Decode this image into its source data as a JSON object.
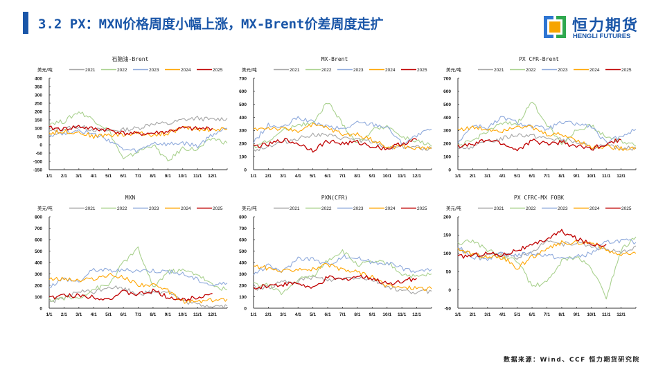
{
  "header": {
    "title": "3.2 PX：MXN价格周度小幅上涨，MX-Brent价差周度走扩"
  },
  "logo": {
    "name_cn": "恒力期货",
    "name_en": "HENGLI FUTURES"
  },
  "footer": {
    "source": "数据来源：Wind、CCF 恒力期货研究院"
  },
  "colors": {
    "2021": "#a6a6a6",
    "2022": "#a9d18e",
    "2023": "#8faadc",
    "2024": "#ffa500",
    "2025": "#c00000",
    "brand": "#1a56a8"
  },
  "chart_data": [
    {
      "type": "line",
      "title": "石脑油-Brent",
      "unit": "美元/吨",
      "xlabel": "",
      "ylabel": "美元/吨",
      "ylim": [
        -150,
        400
      ],
      "yticks": [
        400,
        350,
        300,
        250,
        200,
        150,
        100,
        50,
        0,
        -50,
        -100,
        -150
      ],
      "xticks": [
        "1/1",
        "2/1",
        "3/1",
        "4/1",
        "5/1",
        "6/1",
        "7/1",
        "8/1",
        "9/1",
        "10/1",
        "11/1",
        "12/1"
      ],
      "series": [
        {
          "name": "2021",
          "values": [
            80,
            95,
            110,
            90,
            85,
            90,
            100,
            130,
            125,
            150,
            160,
            150,
            160
          ]
        },
        {
          "name": "2022",
          "values": [
            130,
            140,
            200,
            150,
            90,
            -90,
            -40,
            0,
            -100,
            -20,
            -30,
            40,
            10
          ]
        },
        {
          "name": "2023",
          "values": [
            60,
            70,
            90,
            60,
            30,
            -30,
            -40,
            10,
            0,
            10,
            -10,
            60,
            100
          ]
        },
        {
          "name": "2024",
          "values": [
            70,
            80,
            75,
            50,
            60,
            60,
            70,
            60,
            70,
            100,
            95,
            90,
            95
          ]
        },
        {
          "name": "2025",
          "values": [
            100,
            95,
            110,
            95,
            90,
            70,
            65,
            70,
            80,
            100,
            95,
            100
          ]
        }
      ]
    },
    {
      "type": "line",
      "title": "MX-Brent",
      "unit": "美元/吨",
      "xlabel": "",
      "ylabel": "美元/吨",
      "ylim": [
        0,
        700
      ],
      "yticks": [
        700,
        600,
        500,
        400,
        300,
        200,
        100,
        0
      ],
      "xticks": [
        "1/1",
        "2/1",
        "3/1",
        "4/1",
        "5/1",
        "6/1",
        "7/1",
        "8/1",
        "9/1",
        "10/1",
        "11/1",
        "12/1"
      ],
      "series": [
        {
          "name": "2021",
          "values": [
            150,
            180,
            210,
            240,
            270,
            260,
            240,
            230,
            210,
            170,
            180,
            170,
            160
          ]
        },
        {
          "name": "2022",
          "values": [
            180,
            220,
            300,
            350,
            350,
            520,
            350,
            200,
            300,
            340,
            250,
            220,
            180
          ]
        },
        {
          "name": "2023",
          "values": [
            210,
            340,
            320,
            400,
            360,
            330,
            310,
            360,
            350,
            330,
            200,
            260,
            310
          ]
        },
        {
          "name": "2024",
          "values": [
            310,
            320,
            310,
            300,
            340,
            320,
            270,
            270,
            230,
            170,
            180,
            160,
            170
          ]
        },
        {
          "name": "2025",
          "values": [
            180,
            190,
            230,
            200,
            150,
            220,
            200,
            210,
            180,
            160,
            200,
            230
          ]
        }
      ]
    },
    {
      "type": "line",
      "title": "PX CFR-Brent",
      "unit": "美元/吨",
      "xlabel": "",
      "ylabel": "美元/吨",
      "ylim": [
        0,
        700
      ],
      "yticks": [
        700,
        600,
        500,
        400,
        300,
        200,
        100,
        0
      ],
      "xticks": [
        "1/1",
        "2/1",
        "3/1",
        "4/1",
        "5/1",
        "6/1",
        "7/1",
        "8/1",
        "9/1",
        "10/1",
        "11/1",
        "12/1"
      ],
      "series": [
        {
          "name": "2021",
          "values": [
            150,
            180,
            210,
            240,
            270,
            260,
            240,
            230,
            210,
            170,
            180,
            170,
            160
          ]
        },
        {
          "name": "2022",
          "values": [
            180,
            220,
            300,
            350,
            350,
            520,
            350,
            200,
            300,
            340,
            250,
            220,
            180
          ]
        },
        {
          "name": "2023",
          "values": [
            210,
            340,
            320,
            400,
            360,
            330,
            310,
            360,
            350,
            330,
            200,
            260,
            310
          ]
        },
        {
          "name": "2024",
          "values": [
            310,
            320,
            310,
            300,
            340,
            320,
            270,
            270,
            230,
            170,
            180,
            160,
            170
          ]
        },
        {
          "name": "2025",
          "values": [
            180,
            190,
            230,
            200,
            150,
            220,
            200,
            210,
            180,
            160,
            200,
            230
          ]
        }
      ]
    },
    {
      "type": "line",
      "title": "MXN",
      "unit": "美元/吨",
      "xlabel": "",
      "ylabel": "美元/吨",
      "ylim": [
        0,
        800
      ],
      "yticks": [
        800,
        700,
        600,
        500,
        400,
        300,
        200,
        100,
        0
      ],
      "xticks": [
        "1/1",
        "2/1",
        "3/1",
        "4/1",
        "5/1",
        "6/1",
        "7/1",
        "8/1",
        "9/1",
        "10/1",
        "11/1",
        "12/1"
      ],
      "series": [
        {
          "name": "2021",
          "values": [
            60,
            80,
            150,
            140,
            190,
            170,
            130,
            140,
            150,
            60,
            30,
            20,
            20
          ]
        },
        {
          "name": "2022",
          "values": [
            70,
            90,
            90,
            170,
            200,
            400,
            520,
            180,
            320,
            330,
            300,
            200,
            160
          ]
        },
        {
          "name": "2023",
          "values": [
            190,
            260,
            230,
            340,
            330,
            330,
            330,
            330,
            320,
            300,
            250,
            200,
            220
          ]
        },
        {
          "name": "2024",
          "values": [
            250,
            260,
            240,
            260,
            290,
            270,
            210,
            200,
            150,
            60,
            60,
            70,
            80
          ]
        },
        {
          "name": "2025",
          "values": [
            90,
            110,
            110,
            100,
            80,
            140,
            120,
            150,
            100,
            70,
            100,
            130
          ]
        }
      ]
    },
    {
      "type": "line",
      "title": "PXN(CFR)",
      "unit": "美元/吨",
      "xlabel": "",
      "ylabel": "美元/吨",
      "ylim": [
        0,
        800
      ],
      "yticks": [
        800,
        700,
        600,
        500,
        400,
        300,
        200,
        100,
        0
      ],
      "xticks": [
        "1/1",
        "2/1",
        "3/1",
        "4/1",
        "5/1",
        "6/1",
        "7/1",
        "8/1",
        "9/1",
        "10/1",
        "11/1",
        "12/1"
      ],
      "series": [
        {
          "name": "2021",
          "values": [
            170,
            180,
            230,
            240,
            270,
            240,
            260,
            270,
            250,
            190,
            150,
            140,
            150
          ]
        },
        {
          "name": "2022",
          "values": [
            210,
            200,
            130,
            250,
            280,
            420,
            500,
            380,
            400,
            400,
            300,
            270,
            300
          ]
        },
        {
          "name": "2023",
          "values": [
            300,
            370,
            320,
            440,
            430,
            380,
            450,
            440,
            400,
            400,
            350,
            320,
            340
          ]
        },
        {
          "name": "2024",
          "values": [
            370,
            350,
            320,
            350,
            340,
            380,
            330,
            320,
            270,
            200,
            180,
            180,
            170
          ]
        },
        {
          "name": "2025",
          "values": [
            170,
            200,
            210,
            220,
            170,
            270,
            250,
            280,
            260,
            210,
            240,
            260
          ]
        }
      ]
    },
    {
      "type": "line",
      "title": "PX CFRC-MX FOBK",
      "unit": "美元/吨",
      "xlabel": "",
      "ylabel": "美元/吨",
      "ylim": [
        -50,
        200
      ],
      "yticks": [
        200,
        150,
        100,
        50,
        0,
        -50
      ],
      "xticks": [
        "1/1",
        "2/1",
        "3/1",
        "4/1",
        "5/1",
        "6/1",
        "7/1",
        "8/1",
        "9/1",
        "10/1",
        "11/1",
        "12/1"
      ],
      "series": [
        {
          "name": "2021",
          "values": [
            110,
            100,
            95,
            100,
            90,
            100,
            140,
            125,
            130,
            120,
            110,
            100,
            120
          ]
        },
        {
          "name": "2022",
          "values": [
            125,
            135,
            110,
            90,
            80,
            10,
            20,
            80,
            90,
            60,
            -20,
            110,
            145
          ]
        },
        {
          "name": "2023",
          "values": [
            120,
            90,
            85,
            100,
            95,
            100,
            95,
            85,
            90,
            100,
            130,
            135,
            130
          ]
        },
        {
          "name": "2024",
          "values": [
            115,
            95,
            90,
            90,
            60,
            90,
            110,
            130,
            130,
            130,
            110,
            95,
            100
          ]
        },
        {
          "name": "2025",
          "values": [
            90,
            95,
            100,
            95,
            110,
            120,
            140,
            160,
            140,
            125,
            125
          ]
        }
      ]
    }
  ]
}
